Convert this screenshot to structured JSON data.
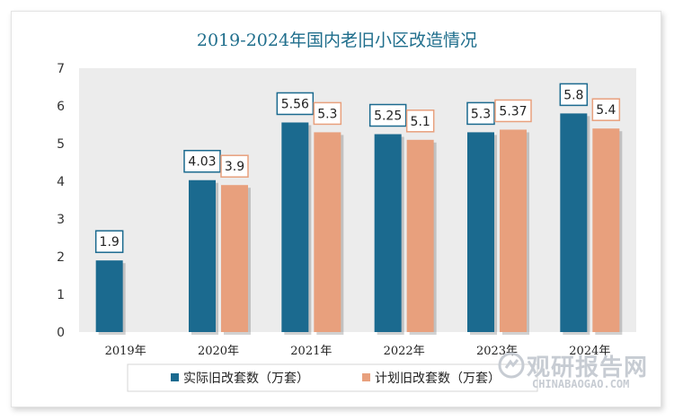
{
  "chart_data": {
    "type": "bar",
    "title": "2019-2024年国内老旧小区改造情况",
    "categories": [
      "2019年",
      "2020年",
      "2021年",
      "2022年",
      "2023年",
      "2024年"
    ],
    "ylim": [
      0,
      7
    ],
    "yticks": [
      0,
      1,
      2,
      3,
      4,
      5,
      6,
      7
    ],
    "series": [
      {
        "name": "实际旧改套数（万套）",
        "color": "#1b6a8f",
        "values": [
          1.9,
          4.03,
          5.56,
          5.25,
          5.3,
          5.8
        ],
        "labels": [
          "1.9",
          "4.03",
          "5.56",
          "5.25",
          "5.3",
          "5.8"
        ]
      },
      {
        "name": "计划旧改套数（万套）",
        "color": "#e8a07d",
        "values": [
          null,
          3.9,
          5.3,
          5.1,
          5.37,
          5.4
        ],
        "labels": [
          "",
          "3.9",
          "5.3",
          "5.1",
          "5.37",
          "5.4"
        ]
      }
    ],
    "legend_position": "bottom"
  },
  "watermark": {
    "name_cn": "观研报告网",
    "url": "CHINABAOGAO.COM"
  }
}
